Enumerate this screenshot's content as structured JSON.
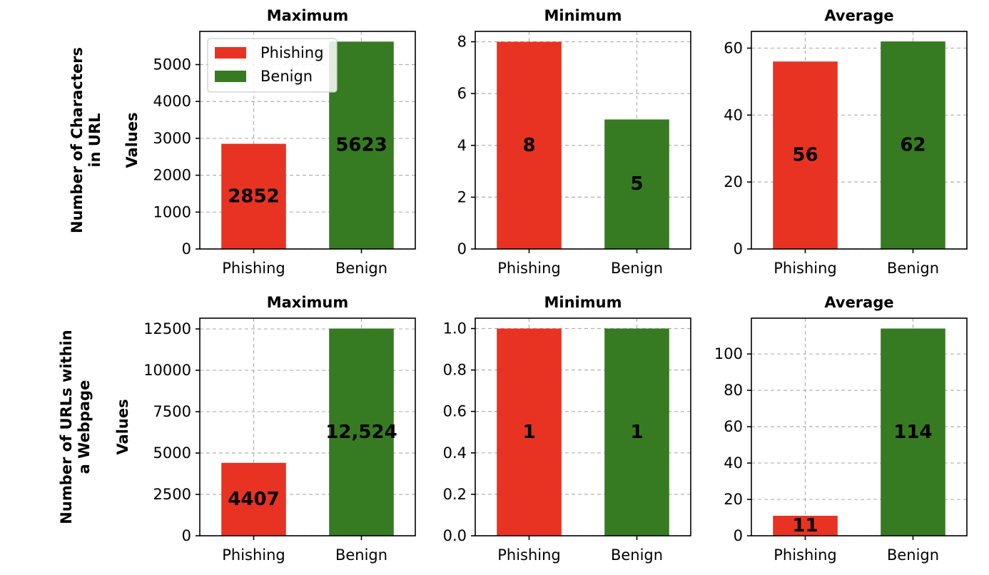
{
  "chart_data": [
    {
      "type": "bar",
      "title": "Maximum",
      "ylabel": "Values",
      "row_label": [
        "Number of Characters",
        "in URL"
      ],
      "categories": [
        "Phishing",
        "Benign"
      ],
      "values": [
        2852,
        5623
      ],
      "bar_labels": [
        "2852",
        "5623"
      ],
      "ylim": [
        0,
        5900
      ],
      "yticks": [
        0,
        1000,
        2000,
        3000,
        4000,
        5000
      ],
      "ytick_labels": [
        "0",
        "1000",
        "2000",
        "3000",
        "4000",
        "5000"
      ],
      "legend": {
        "placement": "top-left",
        "entries": [
          "Phishing",
          "Benign"
        ]
      },
      "grid": true
    },
    {
      "type": "bar",
      "title": "Minimum",
      "categories": [
        "Phishing",
        "Benign"
      ],
      "values": [
        8,
        5
      ],
      "bar_labels": [
        "8",
        "5"
      ],
      "ylim": [
        0,
        8.4
      ],
      "yticks": [
        0,
        2,
        4,
        6,
        8
      ],
      "ytick_labels": [
        "0",
        "2",
        "4",
        "6",
        "8"
      ],
      "grid": true
    },
    {
      "type": "bar",
      "title": "Average",
      "categories": [
        "Phishing",
        "Benign"
      ],
      "values": [
        56,
        62
      ],
      "bar_labels": [
        "56",
        "62"
      ],
      "ylim": [
        0,
        65
      ],
      "yticks": [
        0,
        20,
        40,
        60
      ],
      "ytick_labels": [
        "0",
        "20",
        "40",
        "60"
      ],
      "grid": true
    },
    {
      "type": "bar",
      "title": "Maximum",
      "ylabel": "Values",
      "row_label": [
        "Number of URLs within",
        "a Webpage"
      ],
      "categories": [
        "Phishing",
        "Benign"
      ],
      "values": [
        4407,
        12524
      ],
      "bar_labels": [
        "4407",
        "12,524"
      ],
      "ylim": [
        0,
        13150
      ],
      "yticks": [
        0,
        2500,
        5000,
        7500,
        10000,
        12500
      ],
      "ytick_labels": [
        "0",
        "2500",
        "5000",
        "7500",
        "10000",
        "12500"
      ],
      "grid": true
    },
    {
      "type": "bar",
      "title": "Minimum",
      "categories": [
        "Phishing",
        "Benign"
      ],
      "values": [
        1,
        1
      ],
      "bar_labels": [
        "1",
        "1"
      ],
      "ylim": [
        0,
        1.05
      ],
      "yticks": [
        0,
        0.2,
        0.4,
        0.6,
        0.8,
        1.0
      ],
      "ytick_labels": [
        "0.0",
        "0.2",
        "0.4",
        "0.6",
        "0.8",
        "1.0"
      ],
      "grid": true
    },
    {
      "type": "bar",
      "title": "Average",
      "categories": [
        "Phishing",
        "Benign"
      ],
      "values": [
        11,
        114
      ],
      "bar_labels": [
        "11",
        "114"
      ],
      "ylim": [
        0,
        119.7
      ],
      "yticks": [
        0,
        20,
        40,
        60,
        80,
        100
      ],
      "ytick_labels": [
        "0",
        "20",
        "40",
        "60",
        "80",
        "100"
      ],
      "grid": true
    }
  ],
  "colors": {
    "Phishing": "#e83323",
    "Benign": "#367b21"
  }
}
